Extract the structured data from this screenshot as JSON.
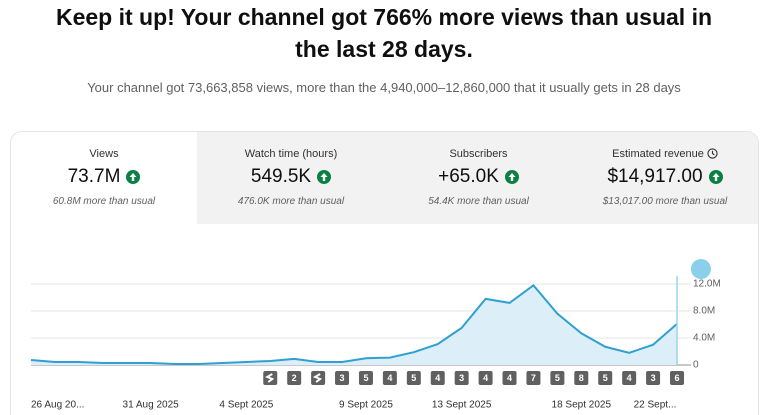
{
  "header": {
    "title_line1": "Keep it up! Your channel got 766% more views than usual in",
    "title_line2": "the last 28 days.",
    "subtitle": "Your channel got 73,663,858 views, more than the 4,940,000–12,860,000 that it usually gets in 28 days"
  },
  "metrics": [
    {
      "label": "Views",
      "value": "73.7M",
      "note": "60.8M more than usual"
    },
    {
      "label": "Watch time (hours)",
      "value": "549.5K",
      "note": "476.0K more than usual"
    },
    {
      "label": "Subscribers",
      "value": "+65.0K",
      "note": "54.4K more than usual"
    },
    {
      "label": "Estimated revenue",
      "value": "$14,917.00",
      "note": "$13,017.00 more than usual"
    }
  ],
  "chart_data": {
    "type": "area",
    "color": "#2fa0cf",
    "fill": "#dceff9",
    "categories": [
      "26 Aug 20...",
      null,
      null,
      null,
      null,
      "31 Aug 2025",
      null,
      null,
      null,
      "4 Sept 2025",
      null,
      null,
      null,
      null,
      "9 Sept 2025",
      null,
      null,
      null,
      "13 Sept 2025",
      null,
      null,
      null,
      null,
      "18 Sept 2025",
      null,
      null,
      null,
      "22 Sept..."
    ],
    "values": [
      740000,
      450000,
      450000,
      300000,
      300000,
      300000,
      150000,
      150000,
      300000,
      450000,
      600000,
      900000,
      450000,
      450000,
      1000000,
      1100000,
      1900000,
      3100000,
      5500000,
      9800000,
      9200000,
      11800000,
      7600000,
      4700000,
      2700000,
      1800000,
      3000000,
      6100000
    ],
    "badges": [
      null,
      null,
      null,
      null,
      null,
      null,
      null,
      null,
      null,
      null,
      null,
      "2",
      null,
      "3",
      "5",
      "4",
      "5",
      "4",
      "3",
      "4",
      "4",
      "7",
      "5",
      "8",
      "5",
      "4",
      "3",
      "6"
    ],
    "ylim": [
      0,
      12000000
    ],
    "yticks": [
      0,
      {
        "value": 4000000,
        "label": "4.0M"
      },
      {
        "value": 8000000,
        "label": "8.0M"
      },
      {
        "value": 12000000,
        "label": "12.0M"
      }
    ],
    "grid": true
  }
}
